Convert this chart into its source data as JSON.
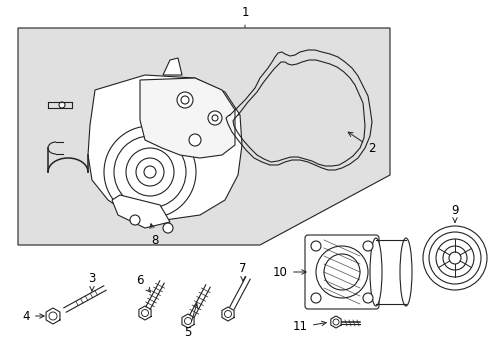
{
  "background_color": "#ffffff",
  "shaded_box_color": "#e0e0e0",
  "line_color": "#222222",
  "fig_width": 4.89,
  "fig_height": 3.6,
  "dpi": 100
}
